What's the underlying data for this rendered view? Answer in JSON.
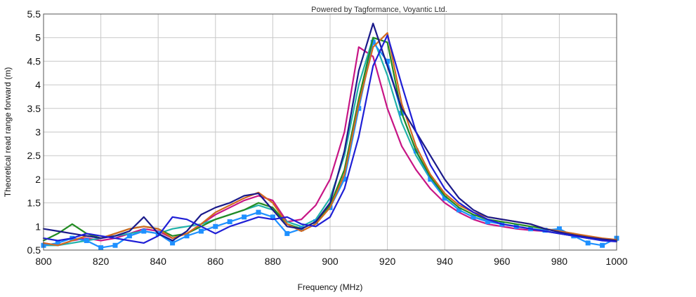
{
  "chart_data": {
    "type": "line",
    "credit": "Powered by Tagformance, Voyantic Ltd.",
    "xlabel": "Frequency (MHz)",
    "ylabel": "Theoretical read range forward (m)",
    "xlim": [
      800,
      1000
    ],
    "ylim": [
      0.5,
      5.5
    ],
    "x_ticks": [
      "800",
      "820",
      "840",
      "860",
      "880",
      "900",
      "920",
      "940",
      "960",
      "980",
      "1000"
    ],
    "y_ticks": [
      "0.5",
      "1",
      "1.5",
      "2",
      "2.5",
      "3",
      "3.5",
      "4",
      "4.5",
      "5",
      "5.5"
    ],
    "grid": true,
    "legend": "none",
    "x": [
      800,
      805,
      810,
      815,
      820,
      825,
      830,
      835,
      840,
      845,
      850,
      855,
      860,
      865,
      870,
      875,
      880,
      885,
      890,
      895,
      900,
      905,
      910,
      915,
      920,
      925,
      930,
      935,
      940,
      945,
      950,
      955,
      960,
      965,
      970,
      975,
      980,
      985,
      990,
      995,
      1000
    ],
    "series": [
      {
        "color": "#c71585",
        "marker": "none",
        "values": [
          0.65,
          0.6,
          0.7,
          0.75,
          0.7,
          0.75,
          0.85,
          0.95,
          0.9,
          0.75,
          0.85,
          1.05,
          1.25,
          1.4,
          1.55,
          1.65,
          1.55,
          1.1,
          1.15,
          1.45,
          2.0,
          3.0,
          4.8,
          4.6,
          3.5,
          2.7,
          2.2,
          1.8,
          1.5,
          1.3,
          1.15,
          1.05,
          1.0,
          0.95,
          0.92,
          0.9,
          0.85,
          0.8,
          0.75,
          0.72,
          0.7
        ]
      },
      {
        "color": "#20b2aa",
        "marker": "none",
        "values": [
          0.6,
          0.6,
          0.65,
          0.7,
          0.75,
          0.8,
          0.85,
          0.9,
          0.85,
          0.95,
          1.0,
          1.05,
          1.15,
          1.25,
          1.35,
          1.45,
          1.35,
          1.1,
          1.0,
          1.15,
          1.6,
          2.5,
          4.0,
          5.0,
          4.2,
          3.2,
          2.5,
          2.0,
          1.6,
          1.35,
          1.2,
          1.12,
          1.05,
          1.0,
          0.95,
          0.9,
          0.85,
          0.8,
          0.75,
          0.72,
          0.7
        ]
      },
      {
        "color": "#1e90ff",
        "marker": "square",
        "values": [
          0.6,
          0.65,
          0.75,
          0.7,
          0.55,
          0.6,
          0.8,
          0.9,
          0.85,
          0.65,
          0.8,
          0.9,
          1.0,
          1.1,
          1.2,
          1.3,
          1.2,
          0.85,
          0.95,
          1.1,
          1.4,
          2.0,
          3.5,
          4.9,
          4.5,
          3.4,
          2.6,
          2.0,
          1.6,
          1.35,
          1.2,
          1.1,
          1.05,
          1.0,
          0.95,
          0.92,
          0.95,
          0.8,
          0.65,
          0.6,
          0.75
        ]
      },
      {
        "color": "#228b22",
        "marker": "none",
        "values": [
          0.7,
          0.85,
          1.05,
          0.85,
          0.75,
          0.85,
          0.95,
          1.0,
          0.95,
          0.8,
          0.85,
          1.0,
          1.15,
          1.25,
          1.35,
          1.5,
          1.4,
          1.05,
          0.95,
          1.1,
          1.45,
          2.2,
          3.7,
          5.0,
          4.9,
          3.4,
          2.6,
          2.05,
          1.65,
          1.4,
          1.25,
          1.15,
          1.1,
          1.05,
          1.0,
          0.95,
          0.9,
          0.85,
          0.78,
          0.72,
          0.7
        ]
      },
      {
        "color": "#d2691e",
        "marker": "none",
        "values": [
          0.65,
          0.6,
          0.7,
          0.8,
          0.75,
          0.85,
          0.95,
          1.0,
          0.95,
          0.75,
          0.85,
          1.05,
          1.3,
          1.45,
          1.6,
          1.72,
          1.5,
          1.05,
          0.9,
          1.05,
          1.4,
          2.1,
          3.6,
          4.8,
          5.1,
          3.6,
          2.7,
          2.1,
          1.7,
          1.45,
          1.3,
          1.2,
          1.15,
          1.1,
          1.05,
          0.95,
          0.9,
          0.85,
          0.8,
          0.75,
          0.72
        ]
      },
      {
        "color": "#1a1a8a",
        "marker": "none",
        "values": [
          0.95,
          0.9,
          0.85,
          0.8,
          0.75,
          0.8,
          0.9,
          1.2,
          0.85,
          0.7,
          0.9,
          1.25,
          1.4,
          1.5,
          1.65,
          1.7,
          1.35,
          1.0,
          0.95,
          1.1,
          1.5,
          2.6,
          4.3,
          5.3,
          4.4,
          3.5,
          3.0,
          2.5,
          2.0,
          1.6,
          1.35,
          1.2,
          1.15,
          1.1,
          1.05,
          0.95,
          0.88,
          0.82,
          0.77,
          0.73,
          0.7
        ]
      },
      {
        "color": "#1f1fd6",
        "marker": "none",
        "values": [
          0.75,
          0.7,
          0.75,
          0.85,
          0.8,
          0.75,
          0.7,
          0.65,
          0.8,
          1.2,
          1.15,
          1.0,
          0.85,
          1.0,
          1.1,
          1.2,
          1.15,
          1.2,
          1.05,
          1.0,
          1.2,
          1.8,
          2.9,
          4.4,
          5.05,
          4.0,
          3.0,
          2.3,
          1.8,
          1.5,
          1.3,
          1.15,
          1.05,
          1.0,
          0.95,
          0.9,
          0.85,
          0.8,
          0.75,
          0.7,
          0.68
        ]
      }
    ]
  }
}
